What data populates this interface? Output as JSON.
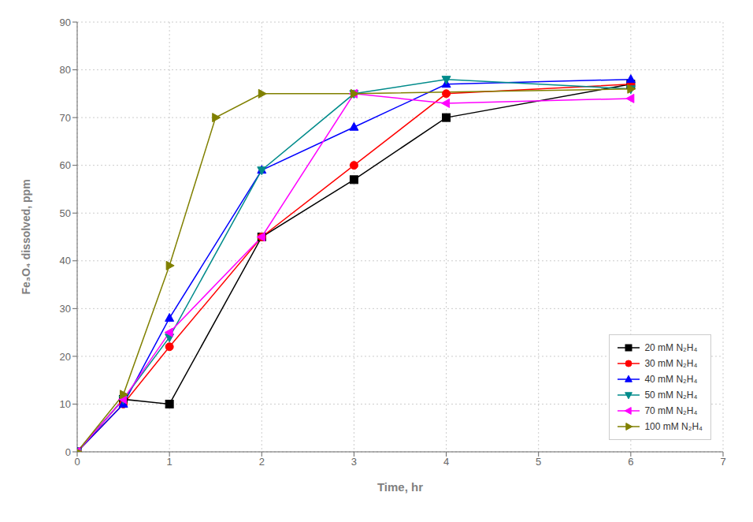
{
  "chart_data": {
    "type": "line",
    "xlabel": "Time, hr",
    "ylabel": "Fe₃O₄ dissolved,  ppm",
    "series": [
      {
        "name": "20 mM N₂H₄",
        "color": "#000000",
        "marker": "square",
        "x": [
          0,
          0.5,
          1,
          2,
          3,
          4,
          6
        ],
        "values": [
          0,
          11,
          10,
          45,
          57,
          70,
          77
        ]
      },
      {
        "name": "30 mM N₂H₄",
        "color": "#ff0000",
        "marker": "circle",
        "x": [
          0,
          0.5,
          1,
          2,
          3,
          4,
          6
        ],
        "values": [
          0,
          10,
          22,
          45,
          60,
          75,
          77
        ]
      },
      {
        "name": "40 mM N₂H₄",
        "color": "#0000ff",
        "marker": "triangle-up",
        "x": [
          0,
          0.5,
          1,
          2,
          3,
          4,
          6
        ],
        "values": [
          0,
          10,
          28,
          59,
          68,
          77,
          78
        ]
      },
      {
        "name": "50 mM N₂H₄",
        "color": "#008b8b",
        "marker": "triangle-down",
        "x": [
          0,
          0.5,
          1,
          2,
          3,
          4,
          6
        ],
        "values": [
          0,
          11,
          24,
          59,
          75,
          78,
          76
        ]
      },
      {
        "name": "70 mM N₂H₄",
        "color": "#ff00ff",
        "marker": "triangle-left",
        "x": [
          0,
          0.5,
          1,
          2,
          3,
          4,
          6
        ],
        "values": [
          0,
          11,
          25,
          45,
          75,
          73,
          74
        ]
      },
      {
        "name": "100 mM N₂H₄",
        "color": "#808000",
        "marker": "triangle-right",
        "x": [
          0,
          0.5,
          1,
          1.5,
          2,
          3,
          6
        ],
        "values": [
          0,
          12,
          39,
          70,
          75,
          75,
          76
        ]
      }
    ],
    "xlim": [
      0,
      7
    ],
    "ylim": [
      0,
      90
    ],
    "xticks": [
      0,
      1,
      2,
      3,
      4,
      5,
      6,
      7
    ],
    "yticks": [
      0,
      10,
      20,
      30,
      40,
      50,
      60,
      70,
      80,
      90
    ],
    "grid": true,
    "legend": "lower right"
  }
}
